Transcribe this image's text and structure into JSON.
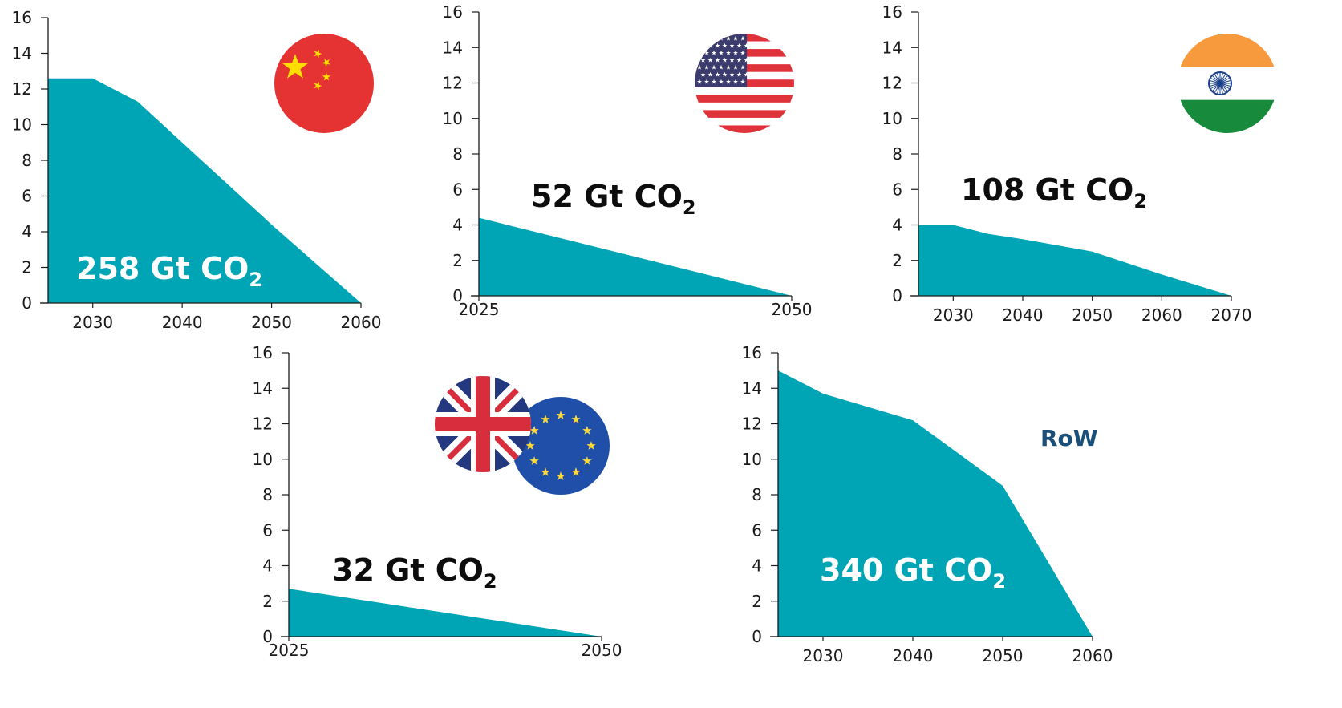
{
  "colors": {
    "area": "#00A5B5",
    "axis": "#1a1a1a",
    "label_dark": "#0d0d0d",
    "label_light": "#ffffff",
    "region_label": "#1a4f7a"
  },
  "chart_data": [
    {
      "id": "china",
      "type": "area",
      "flag_icon": "china-flag-icon",
      "x": [
        2025,
        2030,
        2035,
        2040,
        2045,
        2050,
        2055,
        2060
      ],
      "y": [
        12.6,
        12.6,
        11.3,
        9.0,
        6.7,
        4.4,
        2.2,
        0.0
      ],
      "xlim": [
        2025,
        2060
      ],
      "ylim": [
        0,
        16
      ],
      "xticks": [
        "2030",
        "2040",
        "2050",
        "2060"
      ],
      "yticks": [
        "0",
        "2",
        "4",
        "6",
        "8",
        "10",
        "12",
        "14",
        "16"
      ],
      "total_value": "258 Gt CO",
      "total_subscript": "2",
      "xlabel": "",
      "ylabel": ""
    },
    {
      "id": "usa",
      "type": "area",
      "flag_icon": "usa-flag-icon",
      "x": [
        2025,
        2050
      ],
      "y": [
        4.4,
        0.0
      ],
      "xlim": [
        2025,
        2050
      ],
      "ylim": [
        0,
        16
      ],
      "xticks": [
        "2025",
        "2050"
      ],
      "yticks": [
        "0",
        "2",
        "4",
        "6",
        "8",
        "10",
        "12",
        "14",
        "16"
      ],
      "total_value": "52 Gt CO",
      "total_subscript": "2",
      "xlabel": "",
      "ylabel": ""
    },
    {
      "id": "india",
      "type": "area",
      "flag_icon": "india-flag-icon",
      "x": [
        2025,
        2030,
        2035,
        2040,
        2050,
        2060,
        2070
      ],
      "y": [
        4.0,
        4.0,
        3.5,
        3.2,
        2.5,
        1.2,
        0.0
      ],
      "xlim": [
        2025,
        2070
      ],
      "ylim": [
        0,
        16
      ],
      "xticks": [
        "2030",
        "2040",
        "2050",
        "2060",
        "2070"
      ],
      "yticks": [
        "0",
        "2",
        "4",
        "6",
        "8",
        "10",
        "12",
        "14",
        "16"
      ],
      "total_value": "108 Gt CO",
      "total_subscript": "2",
      "xlabel": "",
      "ylabel": ""
    },
    {
      "id": "uk-eu",
      "type": "area",
      "flag_icon": "uk-eu-flags-icon",
      "x": [
        2025,
        2050
      ],
      "y": [
        2.7,
        0.0
      ],
      "xlim": [
        2025,
        2050
      ],
      "ylim": [
        0,
        16
      ],
      "xticks": [
        "2025",
        "2050"
      ],
      "yticks": [
        "0",
        "2",
        "4",
        "6",
        "8",
        "10",
        "12",
        "14",
        "16"
      ],
      "total_value": "32 Gt CO",
      "total_subscript": "2",
      "xlabel": "",
      "ylabel": ""
    },
    {
      "id": "row",
      "type": "area",
      "region_label": "RoW",
      "x": [
        2025,
        2030,
        2040,
        2050,
        2060
      ],
      "y": [
        15.0,
        13.7,
        12.2,
        8.5,
        0.0
      ],
      "xlim": [
        2025,
        2060
      ],
      "ylim": [
        0,
        16
      ],
      "xticks": [
        "2030",
        "2040",
        "2050",
        "2060"
      ],
      "yticks": [
        "0",
        "2",
        "4",
        "6",
        "8",
        "10",
        "12",
        "14",
        "16"
      ],
      "total_value": "340 Gt CO",
      "total_subscript": "2",
      "xlabel": "",
      "ylabel": ""
    }
  ]
}
